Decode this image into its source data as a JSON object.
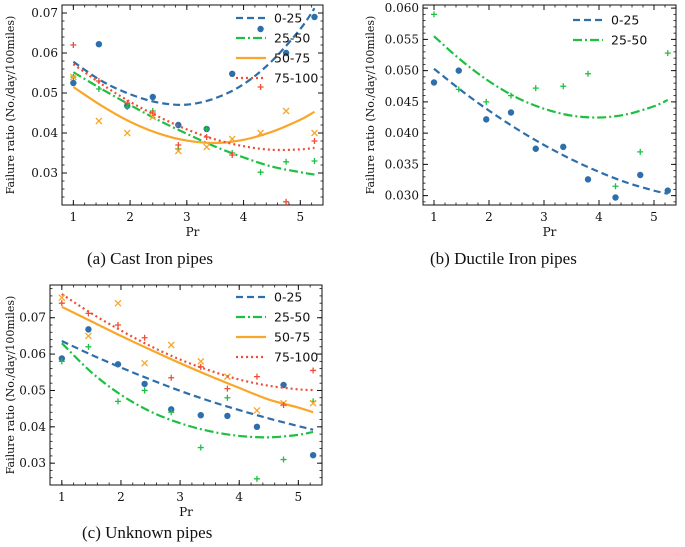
{
  "colors": {
    "0-25": "#2e6fab",
    "25-50": "#1ec043",
    "50-75": "#f9a72a",
    "75-100": "#ef4e34"
  },
  "chart_data": [
    {
      "type": "line",
      "caption": "(a) Cast Iron pipes",
      "xlabel": "Pr",
      "ylabel": "Failure ratio (No./day/100miles)",
      "xlim": [
        0.8,
        5.4
      ],
      "ylim": [
        0.022,
        0.072
      ],
      "xticks": [
        1,
        2,
        3,
        4,
        5
      ],
      "yticks": [
        0.03,
        0.04,
        0.05,
        0.06,
        0.07
      ],
      "ytick_labels": [
        "0.03",
        "0.04",
        "0.05",
        "0.06",
        "0.07"
      ],
      "legend_position": "top-right",
      "series": [
        {
          "name": "0-25",
          "marker": "dot",
          "dash": "7,4",
          "points": [
            [
              1,
              0.0525
            ],
            [
              1.45,
              0.0622
            ],
            [
              1.95,
              0.0468
            ],
            [
              2.4,
              0.049
            ],
            [
              2.85,
              0.042
            ],
            [
              3.35,
              0.041
            ],
            [
              3.8,
              0.0548
            ],
            [
              4.3,
              0.066
            ],
            [
              4.75,
              0.06
            ],
            [
              5.25,
              0.069
            ]
          ],
          "curve": [
            [
              1,
              0.0578
            ],
            [
              1.5,
              0.053
            ],
            [
              2,
              0.0497
            ],
            [
              2.5,
              0.0476
            ],
            [
              3,
              0.0471
            ],
            [
              3.5,
              0.0487
            ],
            [
              4,
              0.0522
            ],
            [
              4.5,
              0.058
            ],
            [
              5,
              0.066
            ],
            [
              5.25,
              0.0712
            ]
          ]
        },
        {
          "name": "25-50",
          "marker": "plus",
          "dash": "9,3,2,3",
          "points": [
            [
              1,
              0.054
            ],
            [
              1.45,
              0.051
            ],
            [
              1.95,
              0.0465
            ],
            [
              2.4,
              0.0455
            ],
            [
              2.85,
              0.036
            ],
            [
              3.35,
              0.041
            ],
            [
              3.8,
              0.035
            ],
            [
              4.3,
              0.0302
            ],
            [
              4.75,
              0.0328
            ],
            [
              5.25,
              0.033
            ]
          ],
          "curve": [
            [
              1,
              0.0552
            ],
            [
              1.5,
              0.051
            ],
            [
              2,
              0.047
            ],
            [
              2.5,
              0.0432
            ],
            [
              3,
              0.0398
            ],
            [
              3.5,
              0.0366
            ],
            [
              4,
              0.0339
            ],
            [
              4.5,
              0.0316
            ],
            [
              5,
              0.0302
            ],
            [
              5.25,
              0.0296
            ]
          ]
        },
        {
          "name": "50-75",
          "marker": "x",
          "dash": "",
          "points": [
            [
              1,
              0.054
            ],
            [
              1.45,
              0.043
            ],
            [
              1.95,
              0.04
            ],
            [
              2.4,
              0.044
            ],
            [
              2.85,
              0.0355
            ],
            [
              3.35,
              0.0365
            ],
            [
              3.8,
              0.0385
            ],
            [
              4.3,
              0.04
            ],
            [
              4.75,
              0.0455
            ],
            [
              5.25,
              0.04
            ]
          ],
          "curve": [
            [
              1,
              0.0515
            ],
            [
              1.5,
              0.0468
            ],
            [
              2,
              0.0428
            ],
            [
              2.5,
              0.0399
            ],
            [
              3,
              0.0381
            ],
            [
              3.5,
              0.0375
            ],
            [
              4,
              0.0383
            ],
            [
              4.5,
              0.0403
            ],
            [
              5,
              0.0433
            ],
            [
              5.25,
              0.0453
            ]
          ]
        },
        {
          "name": "75-100",
          "marker": "plus",
          "dash": "2,3",
          "points": [
            [
              1,
              0.062
            ],
            [
              1.45,
              0.053
            ],
            [
              1.95,
              0.0475
            ],
            [
              2.4,
              0.045
            ],
            [
              2.85,
              0.037
            ],
            [
              3.35,
              0.039
            ],
            [
              3.8,
              0.0345
            ],
            [
              4.3,
              0.0515
            ],
            [
              4.75,
              0.0228
            ],
            [
              5.25,
              0.038
            ]
          ],
          "curve": [
            [
              1,
              0.0572
            ],
            [
              1.5,
              0.0522
            ],
            [
              2,
              0.0478
            ],
            [
              2.5,
              0.0441
            ],
            [
              3,
              0.0409
            ],
            [
              3.5,
              0.0384
            ],
            [
              4,
              0.0367
            ],
            [
              4.5,
              0.0358
            ],
            [
              5,
              0.0359
            ],
            [
              5.25,
              0.0363
            ]
          ]
        }
      ]
    },
    {
      "type": "line",
      "caption": "(b) Ductile Iron pipes",
      "xlabel": "Pr",
      "ylabel": "Failure ratio (No./day/100miles)",
      "xlim": [
        0.8,
        5.4
      ],
      "ylim": [
        0.0285,
        0.0605
      ],
      "xticks": [
        1,
        2,
        3,
        4,
        5
      ],
      "yticks": [
        0.03,
        0.035,
        0.04,
        0.045,
        0.05,
        0.055,
        0.06
      ],
      "ytick_labels": [
        "0.030",
        "0.035",
        "0.040",
        "0.045",
        "0.050",
        "0.055",
        "0.060"
      ],
      "legend_position": "top-right",
      "series": [
        {
          "name": "0-25",
          "marker": "dot",
          "dash": "7,4",
          "points": [
            [
              1,
              0.0481
            ],
            [
              1.45,
              0.05
            ],
            [
              1.95,
              0.0422
            ],
            [
              2.4,
              0.0433
            ],
            [
              2.85,
              0.0375
            ],
            [
              3.35,
              0.0378
            ],
            [
              3.8,
              0.0326
            ],
            [
              4.3,
              0.0297
            ],
            [
              4.75,
              0.0333
            ],
            [
              5.25,
              0.0308
            ]
          ],
          "curve": [
            [
              1,
              0.0503
            ],
            [
              1.5,
              0.0468
            ],
            [
              2,
              0.0436
            ],
            [
              2.5,
              0.0407
            ],
            [
              3,
              0.0381
            ],
            [
              3.5,
              0.0358
            ],
            [
              4,
              0.0338
            ],
            [
              4.5,
              0.0321
            ],
            [
              5,
              0.0308
            ],
            [
              5.25,
              0.0303
            ]
          ]
        },
        {
          "name": "25-50",
          "marker": "plus",
          "dash": "9,3,2,3",
          "points": [
            [
              1,
              0.059
            ],
            [
              1.45,
              0.047
            ],
            [
              1.95,
              0.045
            ],
            [
              2.4,
              0.046
            ],
            [
              2.85,
              0.0472
            ],
            [
              3.35,
              0.0475
            ],
            [
              3.8,
              0.0495
            ],
            [
              4.3,
              0.0315
            ],
            [
              4.75,
              0.037
            ],
            [
              5.25,
              0.0528
            ]
          ],
          "curve": [
            [
              1,
              0.0555
            ],
            [
              1.5,
              0.0516
            ],
            [
              2,
              0.0483
            ],
            [
              2.5,
              0.0457
            ],
            [
              3,
              0.0439
            ],
            [
              3.5,
              0.0428
            ],
            [
              4,
              0.0425
            ],
            [
              4.5,
              0.043
            ],
            [
              5,
              0.0443
            ],
            [
              5.25,
              0.0453
            ]
          ]
        }
      ]
    },
    {
      "type": "line",
      "caption": "(c) Unknown pipes",
      "xlabel": "Pr",
      "ylabel": "Failure ratio (No./day/100miles)",
      "xlim": [
        0.8,
        5.4
      ],
      "ylim": [
        0.024,
        0.079
      ],
      "xticks": [
        1,
        2,
        3,
        4,
        5
      ],
      "yticks": [
        0.03,
        0.04,
        0.05,
        0.06,
        0.07
      ],
      "ytick_labels": [
        "0.03",
        "0.04",
        "0.05",
        "0.06",
        "0.07"
      ],
      "legend_position": "top-right",
      "series": [
        {
          "name": "0-25",
          "marker": "dot",
          "dash": "7,4",
          "points": [
            [
              1,
              0.0588
            ],
            [
              1.45,
              0.0668
            ],
            [
              1.95,
              0.0572
            ],
            [
              2.4,
              0.0518
            ],
            [
              2.85,
              0.0448
            ],
            [
              3.35,
              0.0432
            ],
            [
              3.8,
              0.043
            ],
            [
              4.3,
              0.04
            ],
            [
              4.75,
              0.0515
            ],
            [
              5.25,
              0.0322
            ]
          ],
          "curve": [
            [
              1,
              0.0636
            ],
            [
              1.5,
              0.0598
            ],
            [
              2,
              0.0563
            ],
            [
              2.5,
              0.053
            ],
            [
              3,
              0.0499
            ],
            [
              3.5,
              0.0471
            ],
            [
              4,
              0.0446
            ],
            [
              4.5,
              0.0423
            ],
            [
              5,
              0.0402
            ],
            [
              5.25,
              0.0392
            ]
          ]
        },
        {
          "name": "25-50",
          "marker": "plus",
          "dash": "9,3,2,3",
          "points": [
            [
              1,
              0.058
            ],
            [
              1.45,
              0.062
            ],
            [
              1.95,
              0.047
            ],
            [
              2.4,
              0.05
            ],
            [
              2.85,
              0.044
            ],
            [
              3.35,
              0.0343
            ],
            [
              3.8,
              0.048
            ],
            [
              4.3,
              0.0257
            ],
            [
              4.75,
              0.031
            ],
            [
              5.25,
              0.047
            ]
          ],
          "curve": [
            [
              1,
              0.063
            ],
            [
              1.5,
              0.055
            ],
            [
              2,
              0.0488
            ],
            [
              2.5,
              0.0442
            ],
            [
              3,
              0.041
            ],
            [
              3.5,
              0.0388
            ],
            [
              4,
              0.0375
            ],
            [
              4.5,
              0.0371
            ],
            [
              5,
              0.0378
            ],
            [
              5.25,
              0.0386
            ]
          ]
        },
        {
          "name": "50-75",
          "marker": "x",
          "dash": "",
          "points": [
            [
              1,
              0.0755
            ],
            [
              1.45,
              0.065
            ],
            [
              1.95,
              0.074
            ],
            [
              2.4,
              0.0575
            ],
            [
              2.85,
              0.0625
            ],
            [
              3.35,
              0.058
            ],
            [
              3.8,
              0.0538
            ],
            [
              4.3,
              0.0445
            ],
            [
              4.75,
              0.0465
            ],
            [
              5.25,
              0.0465
            ]
          ],
          "curve": [
            [
              1,
              0.073
            ],
            [
              1.5,
              0.069
            ],
            [
              2,
              0.065
            ],
            [
              2.5,
              0.0612
            ],
            [
              3,
              0.0575
            ],
            [
              3.5,
              0.054
            ],
            [
              4,
              0.0507
            ],
            [
              4.5,
              0.0475
            ],
            [
              5,
              0.0453
            ],
            [
              5.25,
              0.044
            ]
          ]
        },
        {
          "name": "75-100",
          "marker": "plus",
          "dash": "2,3",
          "points": [
            [
              1,
              0.074
            ],
            [
              1.45,
              0.0712
            ],
            [
              1.95,
              0.068
            ],
            [
              2.4,
              0.0645
            ],
            [
              2.85,
              0.0535
            ],
            [
              3.35,
              0.0565
            ],
            [
              3.8,
              0.0505
            ],
            [
              4.3,
              0.0538
            ],
            [
              4.75,
              0.046
            ],
            [
              5.25,
              0.0555
            ]
          ],
          "curve": [
            [
              1,
              0.0765
            ],
            [
              1.5,
              0.0712
            ],
            [
              2,
              0.0665
            ],
            [
              2.5,
              0.0622
            ],
            [
              3,
              0.0585
            ],
            [
              3.5,
              0.0555
            ],
            [
              4,
              0.053
            ],
            [
              4.5,
              0.0513
            ],
            [
              5,
              0.0503
            ],
            [
              5.25,
              0.0501
            ]
          ]
        }
      ]
    }
  ]
}
